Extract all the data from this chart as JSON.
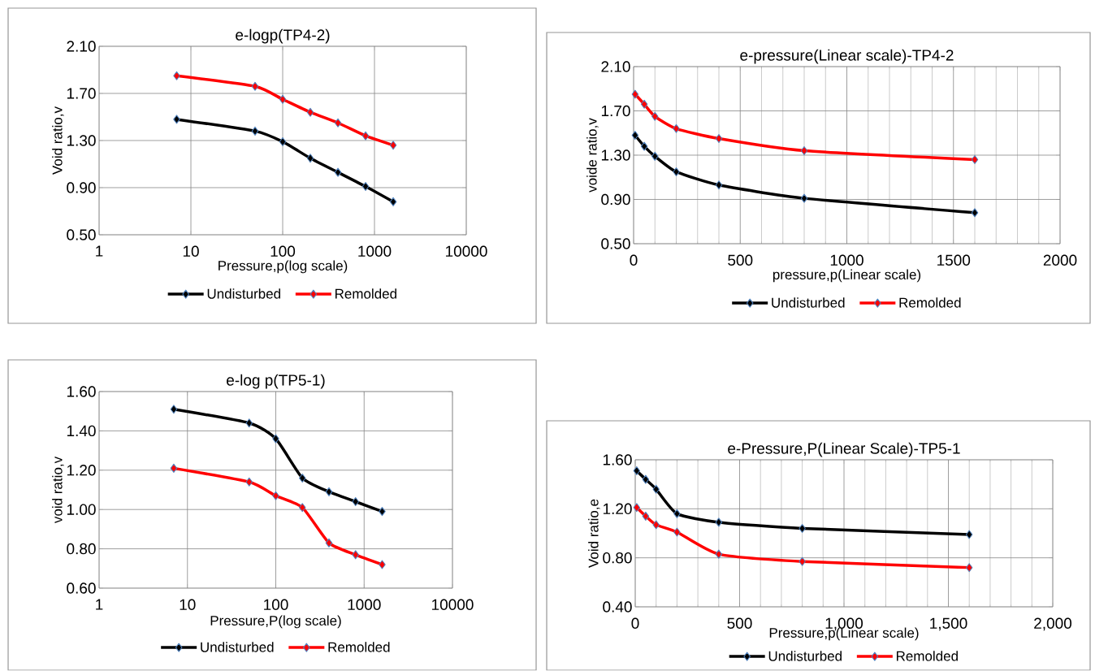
{
  "chart_data": [
    {
      "type": "line",
      "title": "e-logp(TP4-2)",
      "xlabel": "Pressure,p(log scale)",
      "ylabel": "Void ratio,v",
      "log": "x",
      "x": [
        7,
        50,
        100,
        200,
        400,
        800,
        1600
      ],
      "series": [
        {
          "name": "Undisturbed",
          "color": "#000000",
          "values": [
            1.48,
            1.38,
            1.29,
            1.15,
            1.03,
            0.91,
            0.78
          ]
        },
        {
          "name": "Remolded",
          "color": "#ff0000",
          "values": [
            1.85,
            1.76,
            1.65,
            1.54,
            1.45,
            1.34,
            1.26
          ]
        }
      ],
      "xlim": [
        1,
        10000
      ],
      "xticks": [
        1,
        10,
        100,
        1000,
        10000
      ],
      "ylim": [
        0.5,
        2.1
      ],
      "yticks": [
        {
          "value": 0.5,
          "label": "0.50"
        },
        {
          "value": 0.9,
          "label": "0.90"
        },
        {
          "value": 1.3,
          "label": "1.30"
        },
        {
          "value": 1.7,
          "label": "1.70"
        },
        {
          "value": 2.1,
          "label": "2.10"
        }
      ],
      "grid": true,
      "legend": "bottom",
      "marker": "diamond",
      "line_style": "solid"
    },
    {
      "type": "line",
      "title": "e-pressure(Linear scale)-TP4-2",
      "xlabel": "pressure,p(Linear scale)",
      "ylabel": "voide ratio,v",
      "x": [
        7,
        50,
        100,
        200,
        400,
        800,
        1600
      ],
      "series": [
        {
          "name": "Undisturbed",
          "color": "#000000",
          "values": [
            1.48,
            1.38,
            1.29,
            1.15,
            1.03,
            0.91,
            0.78
          ]
        },
        {
          "name": "Remolded",
          "color": "#ff0000",
          "values": [
            1.85,
            1.76,
            1.65,
            1.54,
            1.45,
            1.34,
            1.26
          ]
        }
      ],
      "xlim": [
        0,
        2000
      ],
      "xticks": [
        0,
        500,
        1000,
        1500,
        2000
      ],
      "ylim": [
        0.5,
        2.1
      ],
      "yticks": [
        {
          "value": 0.5,
          "label": "0.50"
        },
        {
          "value": 0.9,
          "label": "0.90"
        },
        {
          "value": 1.3,
          "label": "1.30"
        },
        {
          "value": 1.7,
          "label": "1.70"
        },
        {
          "value": 2.1,
          "label": "2.10"
        }
      ],
      "grid": true,
      "legend": "bottom",
      "marker": "diamond",
      "line_style": "solid"
    },
    {
      "type": "line",
      "title": "e-log p(TP5-1)",
      "xlabel": "Pressure,P(log scale)",
      "ylabel": "void ratio,v",
      "log": "x",
      "x": [
        7,
        50,
        100,
        200,
        400,
        800,
        1600
      ],
      "series": [
        {
          "name": "Undisturbed",
          "color": "#000000",
          "values": [
            1.51,
            1.44,
            1.36,
            1.16,
            1.09,
            1.04,
            0.99
          ]
        },
        {
          "name": "Remolded",
          "color": "#ff0000",
          "values": [
            1.21,
            1.14,
            1.07,
            1.01,
            0.83,
            0.77,
            0.72
          ]
        }
      ],
      "xlim": [
        1,
        10000
      ],
      "xticks": [
        1,
        10,
        100,
        1000,
        10000
      ],
      "ylim": [
        0.6,
        1.6
      ],
      "yticks": [
        {
          "value": 0.6,
          "label": "0.60"
        },
        {
          "value": 0.8,
          "label": "0.80"
        },
        {
          "value": 1.0,
          "label": "1.00"
        },
        {
          "value": 1.2,
          "label": "1.20"
        },
        {
          "value": 1.4,
          "label": "1.40"
        },
        {
          "value": 1.6,
          "label": "1.60"
        }
      ],
      "grid": true,
      "legend": "bottom",
      "marker": "diamond",
      "line_style": "solid"
    },
    {
      "type": "line",
      "title": "e-Pressure,P(Linear Scale)-TP5-1",
      "xlabel": "Pressure,p(Linear scale)",
      "ylabel": "Void ratio,e",
      "x": [
        7,
        50,
        100,
        200,
        400,
        800,
        1600
      ],
      "series": [
        {
          "name": "Undisturbed",
          "color": "#000000",
          "values": [
            1.51,
            1.44,
            1.36,
            1.16,
            1.09,
            1.04,
            0.99
          ]
        },
        {
          "name": "Remolded",
          "color": "#ff0000",
          "values": [
            1.21,
            1.14,
            1.07,
            1.01,
            0.83,
            0.77,
            0.72
          ]
        }
      ],
      "xlim": [
        0,
        2000
      ],
      "xticks": [
        0,
        500,
        {
          "value": 1000,
          "label": "1,000"
        },
        {
          "value": 1500,
          "label": "1,500"
        },
        {
          "value": 2000,
          "label": "2,000"
        }
      ],
      "ylim": [
        0.4,
        1.6
      ],
      "yticks": [
        {
          "value": 0.4,
          "label": "0.40"
        },
        {
          "value": 0.8,
          "label": "0.80"
        },
        {
          "value": 1.2,
          "label": "1.20"
        },
        {
          "value": 1.6,
          "label": "1.60"
        }
      ],
      "grid": true,
      "legend": "bottom",
      "marker": "diamond",
      "line_style": "solid"
    }
  ]
}
